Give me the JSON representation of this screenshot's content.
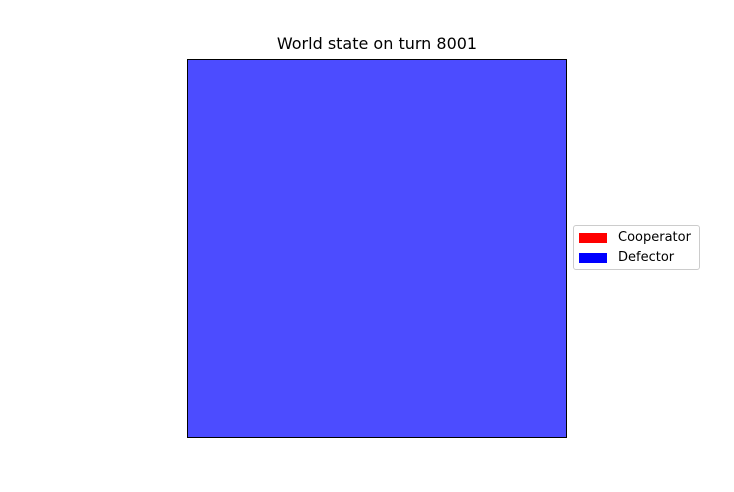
{
  "chart_data": {
    "type": "heatmap",
    "title": "World state on turn 8001",
    "xlabel": "",
    "ylabel": "",
    "grid_rows": 1,
    "grid_cols": 1,
    "cells": [
      [
        "Defector"
      ]
    ],
    "cell_alpha": 0.7,
    "legend": {
      "placement": "center-right outside",
      "entries": [
        {
          "label": "Cooperator",
          "color": "#ff0000"
        },
        {
          "label": "Defector",
          "color": "#0000ff"
        }
      ]
    }
  }
}
